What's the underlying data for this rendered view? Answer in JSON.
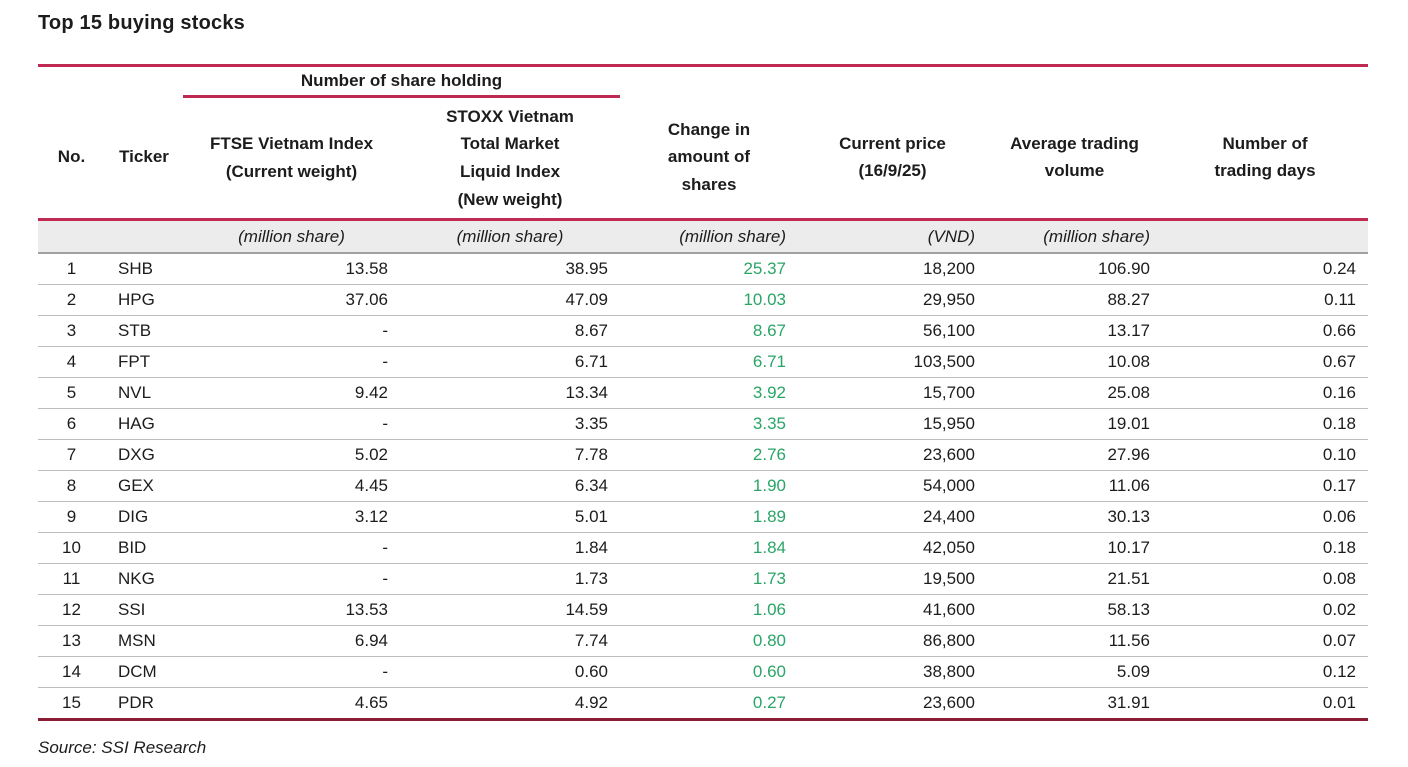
{
  "title": "Top 15 buying stocks",
  "source": "Source: SSI Research",
  "colors": {
    "accent_red": "#c02a52",
    "dark_red": "#8a1c33",
    "green": "#2aa567",
    "unit_row_bg": "#ececec"
  },
  "table": {
    "group_header": "Number of share holding",
    "columns": [
      "No.",
      "Ticker",
      "FTSE Vietnam Index\n(Current weight)",
      "STOXX Vietnam\nTotal Market\nLiquid Index\n(New weight)",
      "Change in\namount of\nshares",
      "Current price\n(16/9/25)",
      "Average trading\nvolume",
      "Number of\ntrading days"
    ],
    "units": [
      "",
      "",
      "(million share)",
      "(million share)",
      "(million share)",
      "(VND)",
      "(million share)",
      ""
    ],
    "rows": [
      [
        "1",
        "SHB",
        "13.58",
        "38.95",
        "25.37",
        "18,200",
        "106.90",
        "0.24"
      ],
      [
        "2",
        "HPG",
        "37.06",
        "47.09",
        "10.03",
        "29,950",
        "88.27",
        "0.11"
      ],
      [
        "3",
        "STB",
        "-",
        "8.67",
        "8.67",
        "56,100",
        "13.17",
        "0.66"
      ],
      [
        "4",
        "FPT",
        "-",
        "6.71",
        "6.71",
        "103,500",
        "10.08",
        "0.67"
      ],
      [
        "5",
        "NVL",
        "9.42",
        "13.34",
        "3.92",
        "15,700",
        "25.08",
        "0.16"
      ],
      [
        "6",
        "HAG",
        "-",
        "3.35",
        "3.35",
        "15,950",
        "19.01",
        "0.18"
      ],
      [
        "7",
        "DXG",
        "5.02",
        "7.78",
        "2.76",
        "23,600",
        "27.96",
        "0.10"
      ],
      [
        "8",
        "GEX",
        "4.45",
        "6.34",
        "1.90",
        "54,000",
        "11.06",
        "0.17"
      ],
      [
        "9",
        "DIG",
        "3.12",
        "5.01",
        "1.89",
        "24,400",
        "30.13",
        "0.06"
      ],
      [
        "10",
        "BID",
        "-",
        "1.84",
        "1.84",
        "42,050",
        "10.17",
        "0.18"
      ],
      [
        "11",
        "NKG",
        "-",
        "1.73",
        "1.73",
        "19,500",
        "21.51",
        "0.08"
      ],
      [
        "12",
        "SSI",
        "13.53",
        "14.59",
        "1.06",
        "41,600",
        "58.13",
        "0.02"
      ],
      [
        "13",
        "MSN",
        "6.94",
        "7.74",
        "0.80",
        "86,800",
        "11.56",
        "0.07"
      ],
      [
        "14",
        "DCM",
        "-",
        "0.60",
        "0.60",
        "38,800",
        "5.09",
        "0.12"
      ],
      [
        "15",
        "PDR",
        "4.65",
        "4.92",
        "0.27",
        "23,600",
        "31.91",
        "0.01"
      ]
    ]
  }
}
